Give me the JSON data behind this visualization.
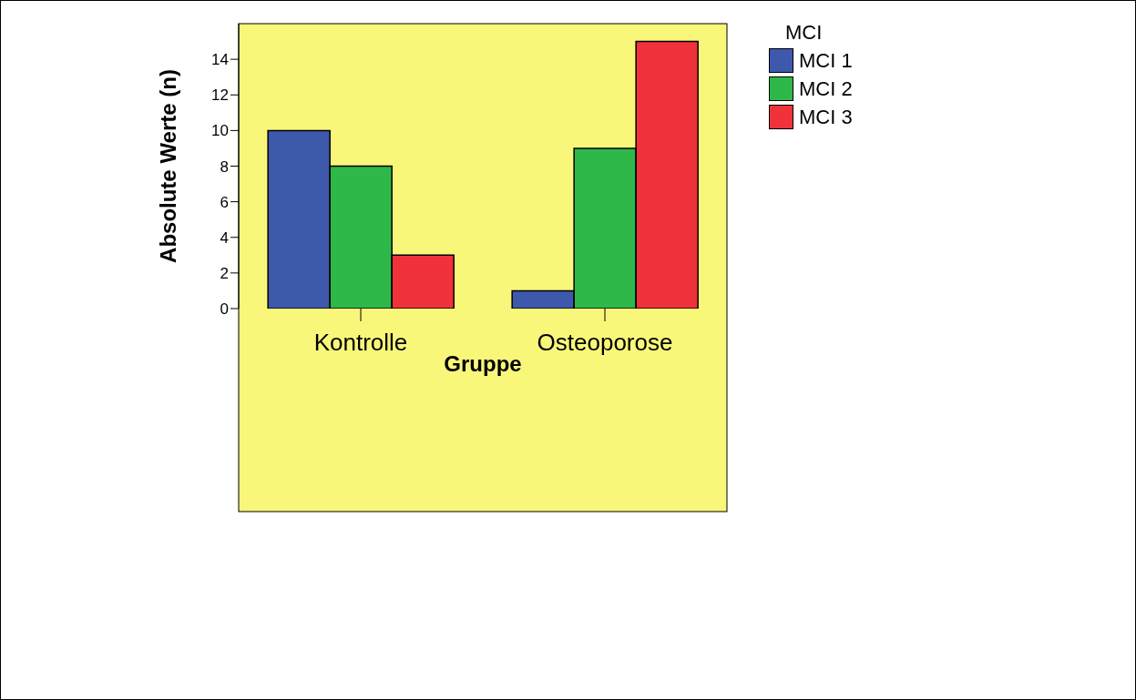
{
  "chart_data": {
    "type": "bar",
    "xlabel": "Gruppe",
    "ylabel": "Absolute Werte (n)",
    "legend_title": "MCI",
    "categories": [
      "Kontrolle",
      "Osteoporose"
    ],
    "series": [
      {
        "name": "MCI 1",
        "color": "#3e58ac",
        "values": [
          10,
          1
        ]
      },
      {
        "name": "MCI 2",
        "color": "#2eb84a",
        "values": [
          8,
          9
        ]
      },
      {
        "name": "MCI 3",
        "color": "#f0323a",
        "values": [
          3,
          15
        ]
      }
    ],
    "ylim": [
      0,
      16
    ],
    "yticks": [
      0,
      2,
      4,
      6,
      8,
      10,
      12,
      14
    ],
    "grid": false,
    "legend": "top right"
  }
}
